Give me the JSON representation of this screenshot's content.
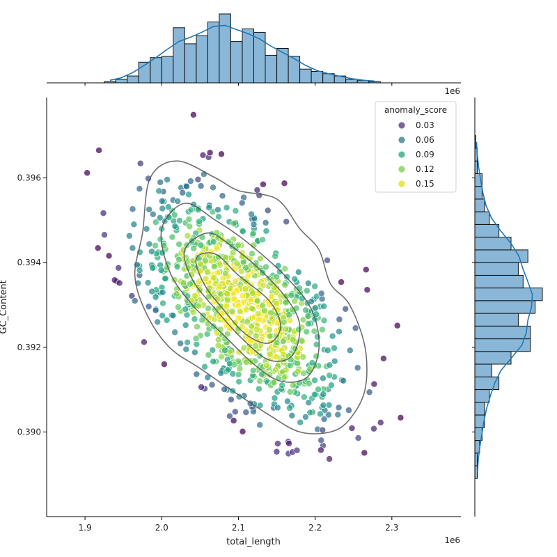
{
  "chart_data": {
    "type": "scatter",
    "subtype": "jointplot",
    "title": "",
    "xlabel": "total_length",
    "ylabel": "GC_Content",
    "x_offset_label": "1e6",
    "x_units": "millions (×1e6)",
    "xlim": [
      1.85,
      2.39
    ],
    "ylim": [
      0.388,
      0.3979
    ],
    "x_ticks": [
      {
        "value": 1.9,
        "label": "1.9"
      },
      {
        "value": 2.0,
        "label": "2.0"
      },
      {
        "value": 2.1,
        "label": "2.1"
      },
      {
        "value": 2.2,
        "label": "2.2"
      },
      {
        "value": 2.3,
        "label": "2.3"
      }
    ],
    "y_ticks": [
      {
        "value": 0.39,
        "label": "0.390"
      },
      {
        "value": 0.392,
        "label": "0.392"
      },
      {
        "value": 0.394,
        "label": "0.394"
      },
      {
        "value": 0.396,
        "label": "0.396"
      }
    ],
    "grid": false,
    "hue": {
      "name": "anomaly_score",
      "colormap": "viridis",
      "range": [
        0.02,
        0.16
      ],
      "legend_placement": "top-right",
      "entries": [
        {
          "label": "0.03",
          "color": "#5a3f8a"
        },
        {
          "label": "0.06",
          "color": "#3b7f8e"
        },
        {
          "label": "0.09",
          "color": "#2eae85"
        },
        {
          "label": "0.12",
          "color": "#7fd25a"
        },
        {
          "label": "0.15",
          "color": "#e2e418"
        }
      ]
    },
    "scatter_points_approx": {
      "n": 1000,
      "x_mean": 2.105,
      "y_mean": 0.393,
      "x_sd": 0.065,
      "y_sd": 0.0013,
      "correlation": -0.55
    },
    "kde_contours": [
      [
        [
          1.975,
          0.3947
        ],
        [
          1.985,
          0.396
        ],
        [
          2.02,
          0.3964
        ],
        [
          2.07,
          0.396
        ],
        [
          2.1,
          0.3957
        ],
        [
          2.15,
          0.3955
        ],
        [
          2.18,
          0.3948
        ],
        [
          2.205,
          0.3943
        ],
        [
          2.22,
          0.3935
        ],
        [
          2.245,
          0.393
        ],
        [
          2.265,
          0.392
        ],
        [
          2.265,
          0.391
        ],
        [
          2.245,
          0.3903
        ],
        [
          2.22,
          0.39
        ],
        [
          2.18,
          0.39
        ],
        [
          2.14,
          0.3904
        ],
        [
          2.09,
          0.391
        ],
        [
          2.05,
          0.3915
        ],
        [
          2.01,
          0.392
        ],
        [
          1.98,
          0.3928
        ],
        [
          1.965,
          0.3937
        ]
      ],
      [
        [
          2.0,
          0.3948
        ],
        [
          2.03,
          0.3954
        ],
        [
          2.07,
          0.395
        ],
        [
          2.11,
          0.3945
        ],
        [
          2.16,
          0.3937
        ],
        [
          2.195,
          0.3929
        ],
        [
          2.205,
          0.392
        ],
        [
          2.19,
          0.3913
        ],
        [
          2.155,
          0.3912
        ],
        [
          2.12,
          0.3916
        ],
        [
          2.08,
          0.3923
        ],
        [
          2.04,
          0.393
        ],
        [
          2.01,
          0.3938
        ]
      ],
      [
        [
          2.03,
          0.3943
        ],
        [
          2.06,
          0.3947
        ],
        [
          2.09,
          0.3944
        ],
        [
          2.13,
          0.3938
        ],
        [
          2.165,
          0.3931
        ],
        [
          2.18,
          0.3925
        ],
        [
          2.17,
          0.3918
        ],
        [
          2.14,
          0.3917
        ],
        [
          2.105,
          0.3922
        ],
        [
          2.07,
          0.3929
        ],
        [
          2.04,
          0.3936
        ]
      ],
      [
        [
          2.045,
          0.3941
        ],
        [
          2.07,
          0.3942
        ],
        [
          2.1,
          0.3937
        ],
        [
          2.14,
          0.3931
        ],
        [
          2.155,
          0.3925
        ],
        [
          2.14,
          0.3921
        ],
        [
          2.11,
          0.3923
        ],
        [
          2.08,
          0.3929
        ],
        [
          2.055,
          0.3935
        ]
      ]
    ],
    "x_histogram": {
      "bin_width": 0.015,
      "start": 1.925,
      "counts": [
        1,
        3,
        6,
        18,
        22,
        23,
        48,
        34,
        41,
        53,
        60,
        36,
        47,
        44,
        24,
        30,
        23,
        12,
        10,
        8,
        6,
        3,
        2,
        1
      ],
      "kde_color": "#1f77b4"
    },
    "y_histogram": {
      "bin_edges": [
        0.3889,
        0.3892,
        0.3895,
        0.3898,
        0.3901,
        0.3904,
        0.3907,
        0.391,
        0.3913,
        0.3916,
        0.3919,
        0.3922,
        0.3925,
        0.3928,
        0.3931,
        0.3934,
        0.3937,
        0.394,
        0.3943,
        0.3946,
        0.3949,
        0.3952,
        0.3955,
        0.3958,
        0.3961,
        0.3964,
        0.3967,
        0.397
      ],
      "counts": [
        0.5,
        0.5,
        1,
        1.5,
        2,
        2,
        3,
        5,
        3.5,
        7.5,
        11.5,
        11.5,
        9,
        12.5,
        14,
        10,
        9,
        11,
        7.5,
        5,
        3,
        2,
        1.5,
        1.5,
        0.5,
        0.5,
        0.2
      ],
      "kde_color": "#1f77b4"
    },
    "marginal_bar_color": "#8ab7d8",
    "marginal_edge_color": "#111111",
    "contour_color": "#555555"
  }
}
